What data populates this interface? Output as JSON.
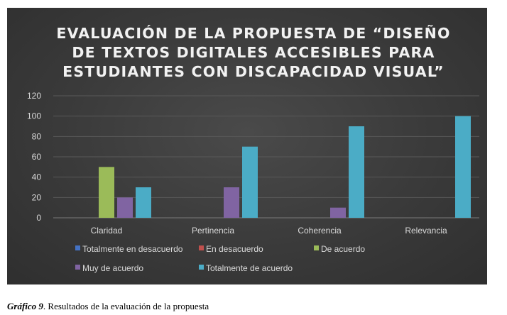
{
  "chart_data": {
    "type": "bar",
    "title_lines": [
      "EVALUACIÓN DE LA PROPUESTA DE “DISEÑO",
      "DE TEXTOS DIGITALES ACCESIBLES PARA",
      "ESTUDIANTES CON DISCAPACIDAD VISUAL”"
    ],
    "categories": [
      "Claridad",
      "Pertinencia",
      "Coherencia",
      "Relevancia"
    ],
    "ylim": [
      0,
      120
    ],
    "yticks": [
      "0",
      "20",
      "40",
      "60",
      "80",
      "100",
      "120"
    ],
    "grid": true,
    "legend_position": "bottom",
    "series": [
      {
        "name": "Totalmente en desacuerdo",
        "color": "#4472c4",
        "values": [
          0,
          0,
          0,
          0
        ]
      },
      {
        "name": "En desacuerdo",
        "color": "#c0504d",
        "values": [
          0,
          0,
          0,
          0
        ]
      },
      {
        "name": "De acuerdo",
        "color": "#9bbb59",
        "values": [
          50,
          0,
          0,
          0
        ]
      },
      {
        "name": "Muy de acuerdo",
        "color": "#8064a2",
        "values": [
          20,
          30,
          10,
          0
        ]
      },
      {
        "name": "Totalmente de acuerdo",
        "color": "#4bacc6",
        "values": [
          30,
          70,
          90,
          100
        ]
      }
    ]
  },
  "caption": {
    "label": "Gráfico 9",
    "text": ". Resultados de la evaluación de la propuesta"
  }
}
